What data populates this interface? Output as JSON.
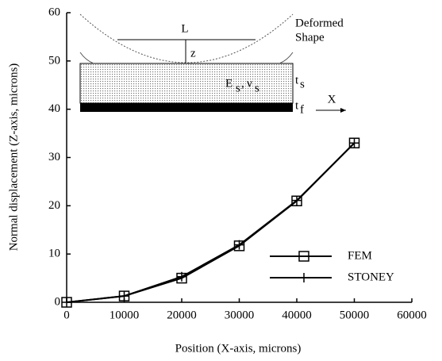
{
  "chart_data": {
    "type": "line",
    "x_label": "Position (X-axis, microns)",
    "y_label": "Normal displacement (Z-axis, microns)",
    "x": [
      0,
      10000,
      20000,
      30000,
      40000,
      50000
    ],
    "series": [
      {
        "name": "FEM",
        "color": "#000000",
        "marker": "square",
        "values": [
          0,
          1.3,
          5,
          11.7,
          21,
          33
        ]
      },
      {
        "name": "STONEY",
        "color": "#000000",
        "marker": "plus",
        "values": [
          0,
          1.3,
          5.3,
          11.9,
          21.1,
          33
        ]
      }
    ],
    "xlim": [
      0,
      60000
    ],
    "xticks": [
      0,
      10000,
      20000,
      30000,
      40000,
      50000,
      60000
    ],
    "ylim": [
      0,
      60
    ],
    "yticks": [
      0,
      10,
      20,
      30,
      40,
      50,
      60
    ],
    "inset": {
      "L": "L",
      "z": "z",
      "deformed_1": "Deformed",
      "deformed_2": "Shape",
      "E": "E",
      "E_sub": "s",
      "separator": ",",
      "nu": "ν",
      "nu_sub": "s",
      "t_s": "t",
      "t_s_sub": "s",
      "t_f": "t",
      "t_f_sub": "f",
      "X": "X"
    }
  }
}
